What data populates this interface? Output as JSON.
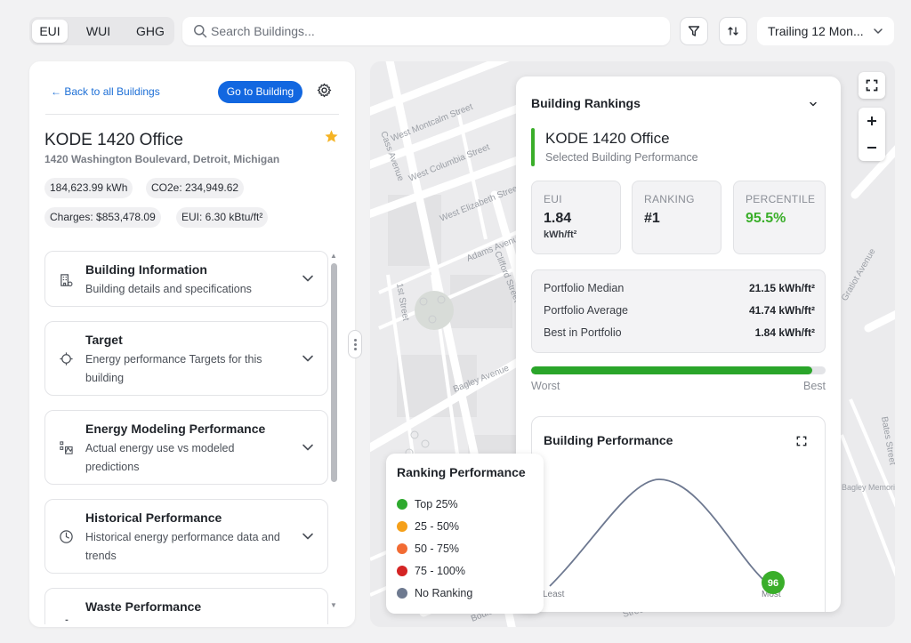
{
  "metric_tabs": [
    {
      "label": "EUI",
      "active": true
    },
    {
      "label": "WUI",
      "active": false
    },
    {
      "label": "GHG",
      "active": false
    }
  ],
  "search": {
    "placeholder": "Search Buildings..."
  },
  "period": {
    "label": "Trailing 12 Mon..."
  },
  "left_panel": {
    "back_label": "← Back to all Buildings",
    "goto_label": "Go to Building",
    "building_name": "KODE 1420 Office",
    "address": "1420 Washington Boulevard, Detroit, Michigan",
    "chips": [
      "184,623.99 kWh",
      "CO2e: 234,949.62",
      "Charges: $853,478.09",
      "EUI: 6.30 kBtu/ft²"
    ],
    "sections": [
      {
        "title": "Building Information",
        "subtitle": "Building details and specifications",
        "icon": "building-icon"
      },
      {
        "title": "Target",
        "subtitle": "Energy performance Targets for this building",
        "icon": "target-icon"
      },
      {
        "title": "Energy Modeling Performance",
        "subtitle": "Actual energy use vs modeled predictions",
        "icon": "modeling-icon"
      },
      {
        "title": "Historical Performance",
        "subtitle": "Historical energy performance data and trends",
        "icon": "clock-icon"
      },
      {
        "title": "Waste Performance",
        "subtitle": "",
        "icon": "waste-icon"
      }
    ]
  },
  "map_labels": [
    "West Montcalm Street",
    "West Columbia Street",
    "West Elizabeth Street",
    "Cass Avenue",
    "Adams Avenue",
    "Clifford Street",
    "1st Street",
    "Bagley Avenue",
    "Gratiot Avenue",
    "Bates Street",
    "Bagley Memorial Fountain",
    "Boulevard",
    "Street"
  ],
  "rankings": {
    "title": "Building Rankings",
    "selected_name": "KODE 1420 Office",
    "selected_sub": "Selected Building Performance",
    "stats": [
      {
        "label": "EUI",
        "value": "1.84",
        "unit": "kWh/ft²",
        "color": "#1f2329"
      },
      {
        "label": "RANKING",
        "value": "#1",
        "unit": "",
        "color": "#1f2329"
      },
      {
        "label": "PERCENTILE",
        "value": "95.5%",
        "unit": "",
        "color": "#3aae2a"
      }
    ],
    "portfolio": [
      {
        "label": "Portfolio Median",
        "value": "21.15 kWh/ft²"
      },
      {
        "label": "Portfolio Average",
        "value": "41.74 kWh/ft²"
      },
      {
        "label": "Best in Portfolio",
        "value": "1.84 kWh/ft²"
      }
    ],
    "progress_percent": 95.5,
    "worst_label": "Worst",
    "best_label": "Best",
    "performance_title": "Building Performance",
    "curve_left_label": "Least",
    "curve_right_label": "Most",
    "marker_value": "96"
  },
  "legend": {
    "title": "Ranking Performance",
    "items": [
      {
        "label": "Top 25%",
        "color": "#2faa2f"
      },
      {
        "label": "25 - 50%",
        "color": "#f5a01a"
      },
      {
        "label": "50 - 75%",
        "color": "#f26b33"
      },
      {
        "label": "75 - 100%",
        "color": "#d42424"
      },
      {
        "label": "No Ranking",
        "color": "#6e7a90"
      }
    ]
  }
}
